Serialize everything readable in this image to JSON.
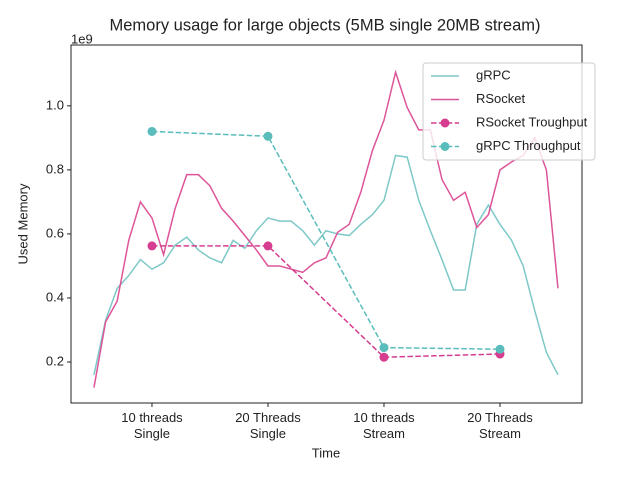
{
  "chart_data": {
    "type": "line",
    "title": "Memory usage for large objects (5MB single 20MB stream)",
    "xlabel": "Time",
    "ylabel": "Used Memory",
    "y_offset_label": "1e9",
    "xlim": [
      0.302,
      4.707
    ],
    "ylim": [
      0.072,
      1.19
    ],
    "xticks": [
      {
        "value": 1,
        "label": "10 threads\nSingle"
      },
      {
        "value": 2,
        "label": "20 Threads\nSingle"
      },
      {
        "value": 3,
        "label": "10 threads\nStream"
      },
      {
        "value": 4,
        "label": "20 Threads\nStream"
      }
    ],
    "yticks": [
      0.2,
      0.4,
      0.6,
      0.8,
      {
        "value": 1,
        "label": "1.0"
      }
    ],
    "legend": "upper right",
    "series": [
      {
        "name": "gRPC",
        "color": "#7ec8c8",
        "style": "solid",
        "marker": false,
        "x": [
          0.5,
          0.6,
          0.7,
          0.8,
          0.9,
          1.0,
          1.1,
          1.2,
          1.3,
          1.4,
          1.5,
          1.6,
          1.7,
          1.8,
          1.9,
          2.0,
          2.1,
          2.2,
          2.3,
          2.4,
          2.5,
          2.6,
          2.7,
          2.8,
          2.9,
          3.0,
          3.1,
          3.2,
          3.3,
          3.4,
          3.5,
          3.6,
          3.7,
          3.8,
          3.9,
          4.0,
          4.1,
          4.2,
          4.3,
          4.4,
          4.5
        ],
        "values": [
          0.16,
          0.33,
          0.43,
          0.47,
          0.52,
          0.49,
          0.51,
          0.565,
          0.59,
          0.55,
          0.525,
          0.51,
          0.58,
          0.555,
          0.61,
          0.65,
          0.64,
          0.64,
          0.61,
          0.565,
          0.61,
          0.6,
          0.595,
          0.63,
          0.66,
          0.705,
          0.845,
          0.84,
          0.705,
          0.61,
          0.52,
          0.425,
          0.425,
          0.63,
          0.69,
          0.63,
          0.58,
          0.5,
          0.36,
          0.23,
          0.16
        ]
      },
      {
        "name": "RSocket",
        "color": "#dd5599",
        "style": "solid",
        "marker": false,
        "x": [
          0.5,
          0.6,
          0.7,
          0.8,
          0.9,
          1.0,
          1.1,
          1.2,
          1.3,
          1.4,
          1.5,
          1.6,
          1.7,
          1.8,
          1.9,
          2.0,
          2.1,
          2.2,
          2.3,
          2.4,
          2.5,
          2.6,
          2.7,
          2.8,
          2.9,
          3.0,
          3.1,
          3.2,
          3.3,
          3.4,
          3.5,
          3.6,
          3.7,
          3.8,
          3.9,
          4.0,
          4.1,
          4.2,
          4.3,
          4.4,
          4.5
        ],
        "values": [
          0.12,
          0.325,
          0.39,
          0.58,
          0.7,
          0.65,
          0.535,
          0.68,
          0.785,
          0.785,
          0.75,
          0.68,
          0.64,
          0.595,
          0.55,
          0.5,
          0.5,
          0.49,
          0.48,
          0.51,
          0.525,
          0.605,
          0.63,
          0.73,
          0.86,
          0.955,
          1.105,
          0.995,
          0.925,
          0.925,
          0.77,
          0.705,
          0.73,
          0.62,
          0.66,
          0.8,
          0.825,
          0.845,
          0.9,
          0.8,
          0.43
        ]
      },
      {
        "name": "RSocket Troughput",
        "color": "#d63c8f",
        "style": "dashed",
        "marker": true,
        "x": [
          1,
          2,
          3,
          4
        ],
        "values": [
          0.5625,
          0.5625,
          0.215,
          0.225
        ]
      },
      {
        "name": "gRPC Throughput",
        "color": "#5bbcbc",
        "style": "dashed",
        "marker": true,
        "x": [
          1,
          2,
          3,
          4
        ],
        "values": [
          0.92,
          0.905,
          0.245,
          0.24
        ]
      }
    ]
  }
}
